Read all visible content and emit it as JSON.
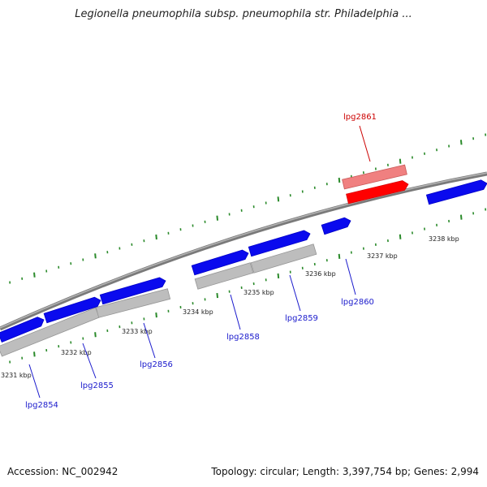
{
  "title": "Legionella pneumophila subsp. pneumophila str. Philadelphia ...",
  "footer": {
    "accession": "Accession: NC_002942",
    "summary": "Topology: circular; Length: 3,397,754 bp; Genes: 2,994"
  },
  "colors": {
    "gene_forward": "#0a0aee",
    "gene_selected": "#ff0000",
    "gene_selected_shadow": "#f08080",
    "cds_shadow": "#bdbdbd",
    "genome_line": "#8c8c8c",
    "tick": "#2a8a2a",
    "label_default": "#1a1acc",
    "label_selected": "#cc0000"
  },
  "scale_labels": [
    "3231 kbp",
    "3232 kbp",
    "3233 kbp",
    "3234 kbp",
    "3235 kbp",
    "3236 kbp",
    "3237 kbp",
    "3238 kbp"
  ],
  "genes": [
    {
      "name": "lpg2854"
    },
    {
      "name": "lpg2855"
    },
    {
      "name": "lpg2856"
    },
    {
      "name": "lpg2858"
    },
    {
      "name": "lpg2859"
    },
    {
      "name": "lpg2860"
    },
    {
      "name": "lpg2861",
      "selected": true
    }
  ]
}
